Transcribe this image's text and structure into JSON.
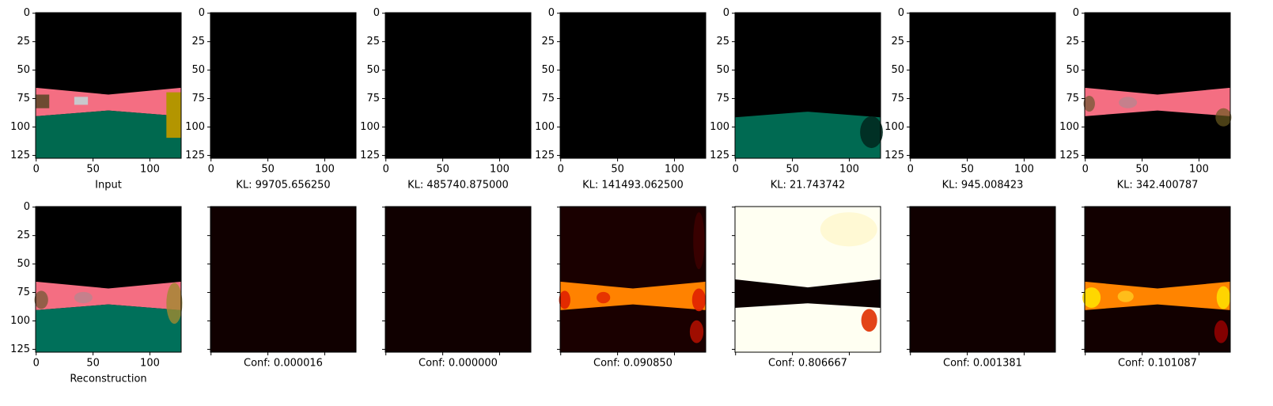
{
  "top": [
    "Input",
    "KL: 99705.656250",
    "KL: 485740.875000",
    "KL: 141493.062500",
    "KL: 21.743742",
    "KL: 945.008423",
    "KL: 342.400787"
  ],
  "bottom": [
    "Reconstruction",
    "Conf: 0.000016",
    "Conf: 0.000000",
    "Conf: 0.090850",
    "Conf: 0.806667",
    "Conf: 0.001381",
    "Conf: 0.101087"
  ],
  "xticks": [
    0,
    50,
    100
  ],
  "yticks": [
    0,
    25,
    50,
    75,
    100,
    125
  ]
}
